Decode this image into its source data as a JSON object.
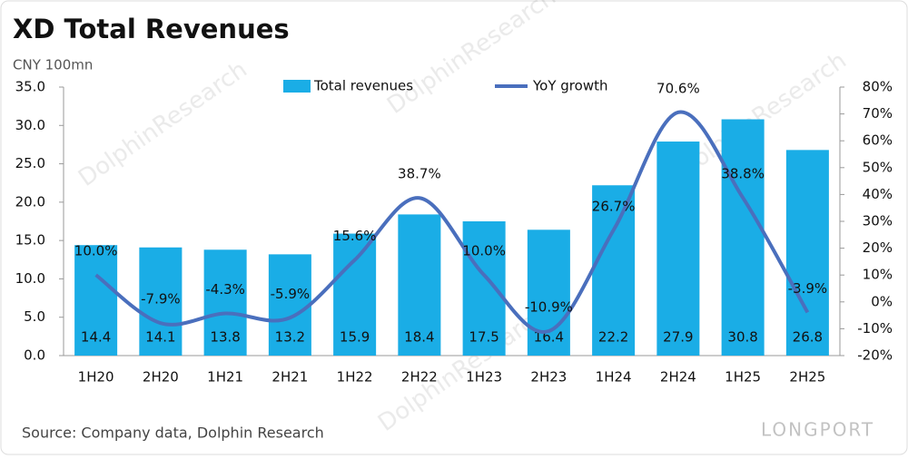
{
  "chart_data": {
    "type": "combo",
    "title": "XD Total Revenues",
    "y_axis_label": "CNY 100mn",
    "source": "Source: Company data, Dolphin Research",
    "watermark": "DolphinResearch",
    "brand": "LONGPORT",
    "categories": [
      "1H20",
      "2H20",
      "1H21",
      "2H21",
      "1H22",
      "2H22",
      "1H23",
      "2H23",
      "1H24",
      "2H24",
      "1H25",
      "2H25"
    ],
    "series": [
      {
        "name": "Total revenues",
        "kind": "bar",
        "color": "#1aade6",
        "values": [
          14.4,
          14.1,
          13.8,
          13.2,
          15.9,
          18.4,
          17.5,
          16.4,
          22.2,
          27.9,
          30.8,
          26.8
        ]
      },
      {
        "name": "YoY growth",
        "kind": "line",
        "axis": "y2",
        "color": "#4a6fbd",
        "values": [
          10.0,
          -7.9,
          -4.3,
          -5.9,
          15.6,
          38.7,
          10.0,
          -10.9,
          26.7,
          70.6,
          38.8,
          -3.9
        ],
        "value_labels": [
          "10.0%",
          "-7.9%",
          "-4.3%",
          "-5.9%",
          "15.6%",
          "38.7%",
          "10.0%",
          "-10.9%",
          "26.7%",
          "70.6%",
          "38.8%",
          "-3.9%"
        ]
      }
    ],
    "ylim": [
      0,
      35
    ],
    "yticks": [
      {
        "value": 0,
        "label": "0.0"
      },
      {
        "value": 5,
        "label": "5.0"
      },
      {
        "value": 10,
        "label": "10.0"
      },
      {
        "value": 15,
        "label": "15.0"
      },
      {
        "value": 20,
        "label": "20.0"
      },
      {
        "value": 25,
        "label": "25.0"
      },
      {
        "value": 30,
        "label": "30.0"
      },
      {
        "value": 35,
        "label": "35.0"
      }
    ],
    "y2lim": [
      -20,
      80
    ],
    "y2ticks": [
      {
        "value": -20,
        "label": "-20%"
      },
      {
        "value": -10,
        "label": "-10%"
      },
      {
        "value": 0,
        "label": "0%"
      },
      {
        "value": 10,
        "label": "10%"
      },
      {
        "value": 20,
        "label": "20%"
      },
      {
        "value": 30,
        "label": "30%"
      },
      {
        "value": 40,
        "label": "40%"
      },
      {
        "value": 50,
        "label": "50%"
      },
      {
        "value": 60,
        "label": "60%"
      },
      {
        "value": 70,
        "label": "70%"
      },
      {
        "value": 80,
        "label": "80%"
      }
    ],
    "grid": false
  }
}
